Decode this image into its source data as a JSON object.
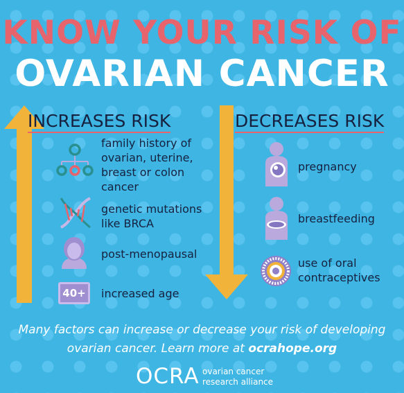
{
  "title": {
    "line1": "KNOW YOUR RISK OF",
    "line2": "OVARIAN CANCER"
  },
  "increases": {
    "heading": "INCREASES RISK",
    "items": [
      {
        "icon": "family-tree-icon",
        "text": "family history of ovarian, uterine, breast or colon cancer"
      },
      {
        "icon": "dna-icon",
        "text": "genetic mutations like BRCA"
      },
      {
        "icon": "woman-icon",
        "text": "post-menopausal"
      },
      {
        "icon": "age-badge-icon",
        "badge": "40+",
        "text": "increased age"
      }
    ]
  },
  "decreases": {
    "heading": "DECREASES RISK",
    "items": [
      {
        "icon": "pregnant-woman-icon",
        "text": "pregnancy"
      },
      {
        "icon": "breastfeeding-icon",
        "text": "breastfeeding"
      },
      {
        "icon": "pill-pack-icon",
        "text": "use of oral contraceptives"
      }
    ]
  },
  "footer": {
    "text": "Many factors can increase or decrease your risk of developing ovarian cancer. Learn more at",
    "link": "ocrahope.org"
  },
  "logo": {
    "mark": "OCRA",
    "line1": "ovarian cancer",
    "line2": "research alliance"
  },
  "colors": {
    "background": "#3fb5e3",
    "title_accent": "#e8646d",
    "arrow": "#f2b33a",
    "text_dark": "#16213f",
    "icon_purple": "#b9a9dc"
  }
}
